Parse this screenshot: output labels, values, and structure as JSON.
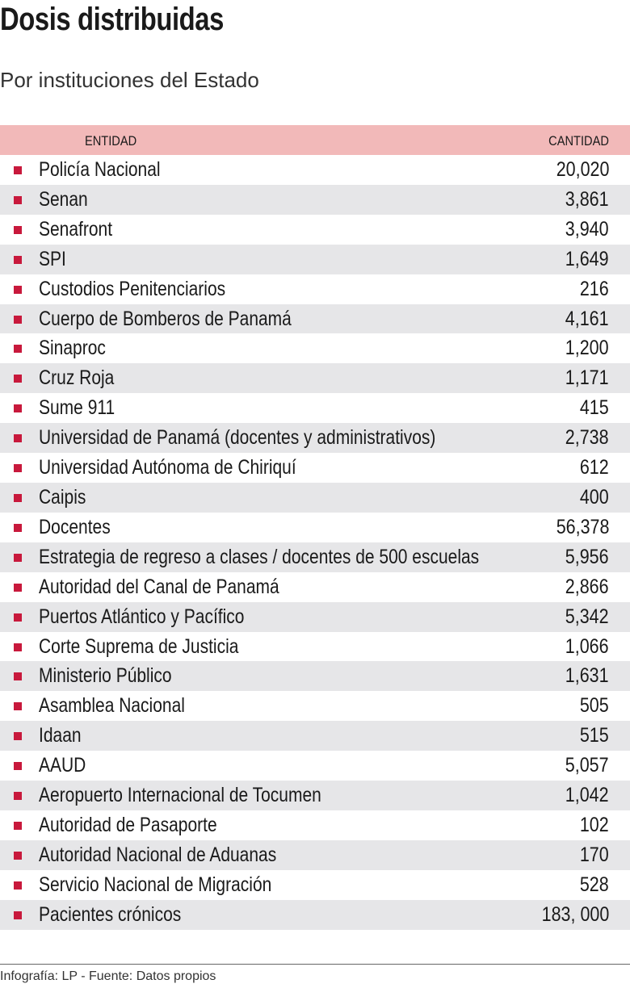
{
  "header": {
    "title": "Dosis distribuidas",
    "subtitle": "Por instituciones del Estado"
  },
  "table": {
    "columns": [
      "ENTIDAD",
      "CANTIDAD"
    ],
    "rows": [
      [
        "Policía Nacional",
        "20,020"
      ],
      [
        "Senan",
        "3,861"
      ],
      [
        "Senafront",
        "3,940"
      ],
      [
        "SPI",
        "1,649"
      ],
      [
        "Custodios Penitenciarios",
        "216"
      ],
      [
        "Cuerpo de Bomberos de Panamá",
        "4,161"
      ],
      [
        "Sinaproc",
        "1,200"
      ],
      [
        "Cruz Roja",
        "1,171"
      ],
      [
        "Sume 911",
        "415"
      ],
      [
        "Universidad de Panamá (docentes y administrativos)",
        "2,738"
      ],
      [
        "Universidad Autónoma de Chiriquí",
        "612"
      ],
      [
        "Caipis",
        "400"
      ],
      [
        "Docentes",
        "56,378"
      ],
      [
        "Estrategia de regreso a clases / docentes de 500 escuelas",
        "5,956"
      ],
      [
        "Autoridad del Canal de Panamá",
        "2,866"
      ],
      [
        "Puertos Atlántico y Pacífico",
        "5,342"
      ],
      [
        "Corte Suprema de Justicia",
        "1,066"
      ],
      [
        "Ministerio Público",
        "1,631"
      ],
      [
        "Asamblea Nacional",
        "505"
      ],
      [
        "Idaan",
        "515"
      ],
      [
        "AAUD",
        "5,057"
      ],
      [
        "Aeropuerto Internacional de Tocumen",
        "1,042"
      ],
      [
        "Autoridad de Pasaporte",
        "102"
      ],
      [
        "Autoridad Nacional de Aduanas",
        "170"
      ],
      [
        "Servicio Nacional de Migración",
        "528"
      ],
      [
        "Pacientes crónicos",
        "183, 000"
      ]
    ]
  },
  "footer": {
    "credit": "Infografía: LP - Fuente: Datos propios"
  }
}
